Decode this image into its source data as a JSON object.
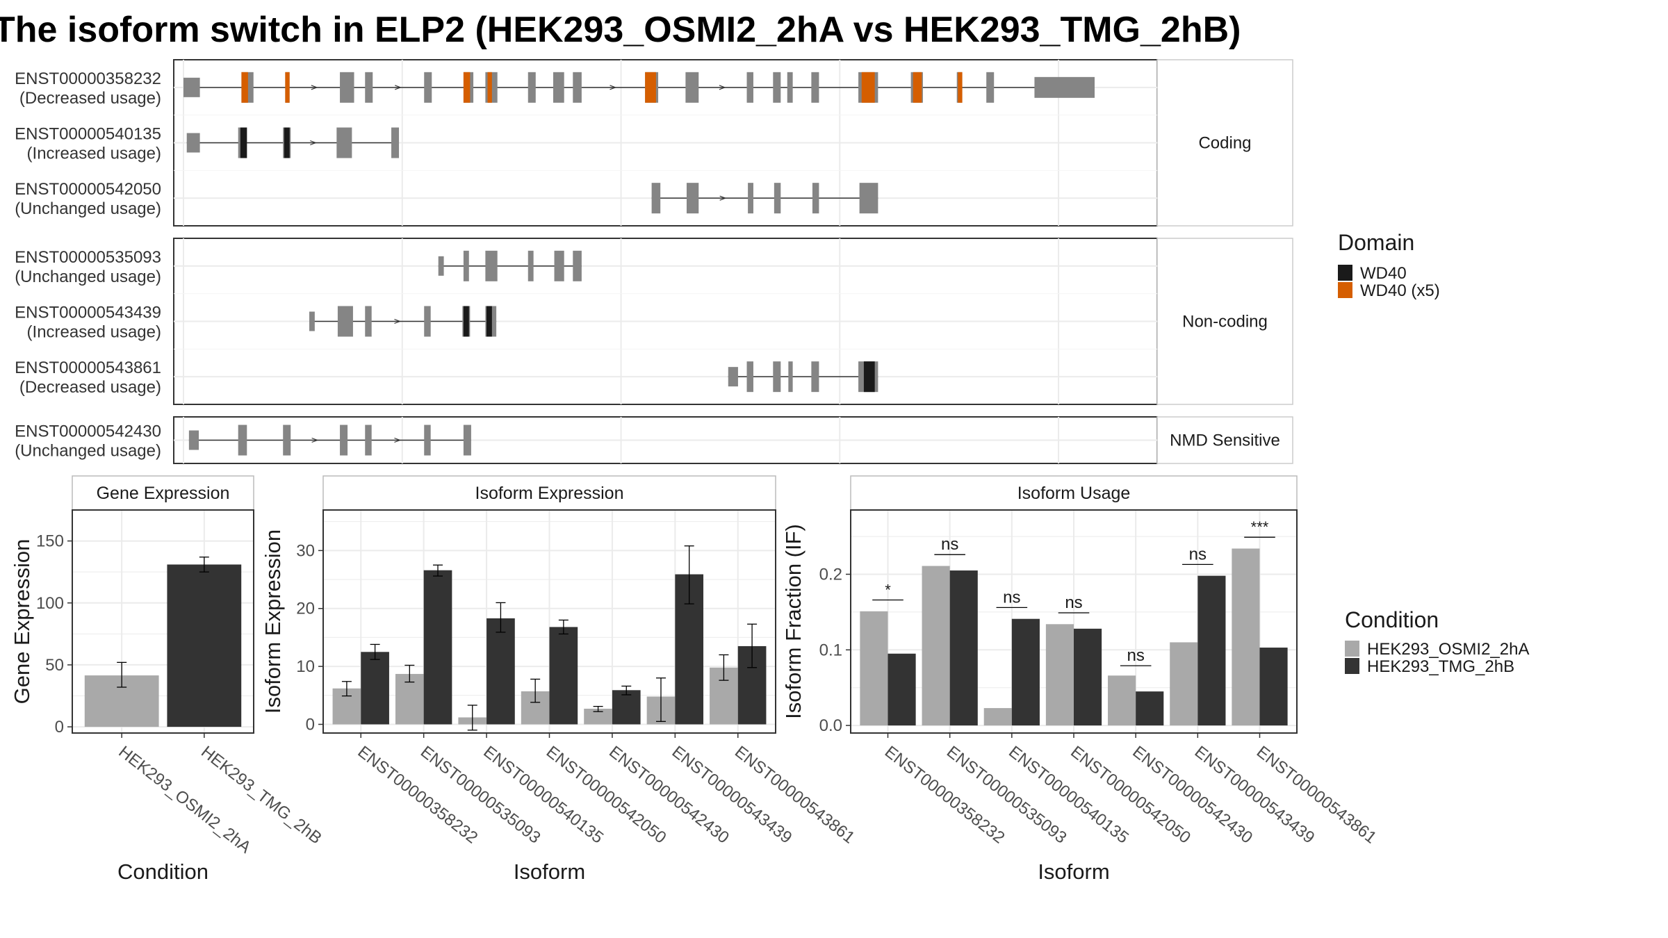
{
  "title": "The isoform switch in ELP2 (HEK293_OSMI2_2hA vs HEK293_TMG_2hB)",
  "colors": {
    "exon": "#858585",
    "wd40": "#1a1a1a",
    "wd40x5": "#d55e00",
    "cond_a": "#a9a9a9",
    "cond_b": "#333333",
    "grid": "#ebebeb",
    "border": "#333333"
  },
  "chart_data": [
    {
      "type": "gene-structure",
      "title": "",
      "legend": {
        "title": "Domain",
        "position": "right",
        "entries": [
          "WD40",
          "WD40 (x5)"
        ]
      },
      "groups": [
        {
          "name": "Coding",
          "transcripts": [
            {
              "id": "ENST00000358232",
              "usage": "(Decreased usage)",
              "exons": [
                [
                  200,
                  215
                ],
                [
                  253,
                  264
                ],
                [
                  293,
                  297
                ],
                [
                  343,
                  356
                ],
                [
                  366,
                  373
                ],
                [
                  420,
                  427
                ],
                [
                  456,
                  465
                ],
                [
                  476,
                  487
                ],
                [
                  515,
                  522
                ],
                [
                  538,
                  548
                ],
                [
                  556,
                  564
                ],
                [
                  622,
                  634
                ],
                [
                  659,
                  671
                ],
                [
                  715,
                  721
                ],
                [
                  739,
                  746
                ],
                [
                  752,
                  757
                ],
                [
                  774,
                  781
                ],
                [
                  817,
                  835
                ],
                [
                  865,
                  876
                ],
                [
                  907,
                  912
                ],
                [
                  934,
                  941
                ],
                [
                  978,
                  1033
                ]
              ],
              "domains": [
                [
                  253,
                  259,
                  "WD40 (x5)"
                ],
                [
                  293,
                  297,
                  "WD40 (x5)"
                ],
                [
                  456,
                  462,
                  "WD40 (x5)"
                ],
                [
                  478,
                  482,
                  "WD40 (x5)"
                ],
                [
                  622,
                  632,
                  "WD40 (x5)"
                ],
                [
                  820,
                  832,
                  "WD40 (x5)"
                ],
                [
                  867,
                  875,
                  "WD40 (x5)"
                ],
                [
                  908,
                  912,
                  "WD40 (x5)"
                ]
              ]
            },
            {
              "id": "ENST00000540135",
              "usage": "(Increased usage)",
              "exons": [
                [
                  203,
                  215
                ],
                [
                  250,
                  258
                ],
                [
                  291,
                  298
                ],
                [
                  340,
                  354
                ],
                [
                  390,
                  397
                ]
              ],
              "domains": [
                [
                  252,
                  258,
                  "WD40"
                ],
                [
                  292,
                  297,
                  "WD40"
                ]
              ]
            },
            {
              "id": "ENST00000542050",
              "usage": "(Unchanged usage)",
              "exons": [
                [
                  628,
                  636
                ],
                [
                  660,
                  671
                ],
                [
                  716,
                  721
                ],
                [
                  740,
                  746
                ],
                [
                  775,
                  781
                ],
                [
                  818,
                  835
                ]
              ],
              "domains": []
            }
          ]
        },
        {
          "name": "Non-coding",
          "transcripts": [
            {
              "id": "ENST00000535093",
              "usage": "(Unchanged usage)",
              "exons": [
                [
                  433,
                  438
                ],
                [
                  456,
                  461
                ],
                [
                  476,
                  487
                ],
                [
                  515,
                  520
                ],
                [
                  539,
                  548
                ],
                [
                  556,
                  564
                ]
              ],
              "domains": []
            },
            {
              "id": "ENST00000543439",
              "usage": "(Increased usage)",
              "exons": [
                [
                  315,
                  320
                ],
                [
                  341,
                  355
                ],
                [
                  366,
                  372
                ],
                [
                  420,
                  426
                ],
                [
                  455,
                  462
                ],
                [
                  476,
                  486
                ]
              ],
              "domains": [
                [
                  456,
                  461,
                  "WD40"
                ],
                [
                  477,
                  482,
                  "WD40"
                ]
              ]
            },
            {
              "id": "ENST00000543861",
              "usage": "(Decreased usage)",
              "exons": [
                [
                  698,
                  707
                ],
                [
                  715,
                  721
                ],
                [
                  739,
                  746
                ],
                [
                  753,
                  757
                ],
                [
                  774,
                  781
                ],
                [
                  817,
                  835
                ]
              ],
              "domains": [
                [
                  822,
                  832,
                  "WD40"
                ]
              ]
            }
          ]
        },
        {
          "name": "NMD Sensitive",
          "transcripts": [
            {
              "id": "ENST00000542430",
              "usage": "(Unchanged usage)",
              "exons": [
                [
                  205,
                  214
                ],
                [
                  250,
                  258
                ],
                [
                  291,
                  298
                ],
                [
                  343,
                  350
                ],
                [
                  366,
                  372
                ],
                [
                  420,
                  426
                ],
                [
                  456,
                  463
                ]
              ],
              "domains": []
            }
          ]
        }
      ]
    },
    {
      "type": "bar",
      "title": "Gene Expression",
      "xlabel": "Condition",
      "ylabel": "Gene Expression",
      "ylim": [
        -5,
        175
      ],
      "yticks": [
        0,
        50,
        100,
        150
      ],
      "categories": [
        "HEK293_OSMI2_2hA",
        "HEK293_TMG_2hB"
      ],
      "values": [
        41.5,
        131
      ],
      "errors": [
        [
          32,
          52
        ],
        [
          125,
          137
        ]
      ]
    },
    {
      "type": "bar",
      "title": "Isoform Expression",
      "xlabel": "Isoform",
      "ylabel": "Isoform Expression",
      "ylim": [
        -1.5,
        37
      ],
      "yticks": [
        0,
        10,
        20,
        30
      ],
      "categories": [
        "ENST00000358232",
        "ENST00000535093",
        "ENST00000540135",
        "ENST00000542050",
        "ENST00000542430",
        "ENST00000543439",
        "ENST00000543861"
      ],
      "series": [
        {
          "name": "HEK293_OSMI2_2hA",
          "values": [
            6.2,
            8.7,
            1.2,
            5.7,
            2.7,
            4.8,
            9.8
          ],
          "errors": [
            [
              4.9,
              7.4
            ],
            [
              7.3,
              10.2
            ],
            [
              -1.0,
              3.3
            ],
            [
              3.8,
              7.8
            ],
            [
              2.2,
              3.1
            ],
            [
              0.5,
              8.0
            ],
            [
              7.6,
              12.0
            ]
          ]
        },
        {
          "name": "HEK293_TMG_2hB",
          "values": [
            12.5,
            26.6,
            18.3,
            16.8,
            5.9,
            25.9,
            13.5
          ],
          "errors": [
            [
              11.2,
              13.8
            ],
            [
              25.6,
              27.5
            ],
            [
              15.9,
              21.0
            ],
            [
              15.6,
              18.0
            ],
            [
              5.1,
              6.6
            ],
            [
              20.8,
              30.8
            ],
            [
              9.8,
              17.3
            ]
          ]
        }
      ]
    },
    {
      "type": "bar",
      "title": "Isoform Usage",
      "xlabel": "Isoform",
      "ylabel": "Isoform Fraction (IF)",
      "ylim": [
        -0.01,
        0.285
      ],
      "yticks": [
        0.0,
        0.1,
        0.2
      ],
      "categories": [
        "ENST00000358232",
        "ENST00000535093",
        "ENST00000540135",
        "ENST00000542050",
        "ENST00000542430",
        "ENST00000543439",
        "ENST00000543861"
      ],
      "series": [
        {
          "name": "HEK293_OSMI2_2hA",
          "values": [
            0.151,
            0.211,
            0.023,
            0.134,
            0.066,
            0.11,
            0.234
          ]
        },
        {
          "name": "HEK293_TMG_2hB",
          "values": [
            0.095,
            0.205,
            0.141,
            0.128,
            0.045,
            0.198,
            0.103
          ]
        }
      ],
      "significance": [
        "*",
        "ns",
        "ns",
        "ns",
        "ns",
        "ns",
        "***"
      ],
      "significance_y": [
        0.166,
        0.226,
        0.156,
        0.149,
        0.079,
        0.213,
        0.249
      ]
    }
  ],
  "legend_condition": {
    "title": "Condition",
    "position": "right",
    "entries": [
      "HEK293_OSMI2_2hA",
      "HEK293_TMG_2hB"
    ]
  }
}
